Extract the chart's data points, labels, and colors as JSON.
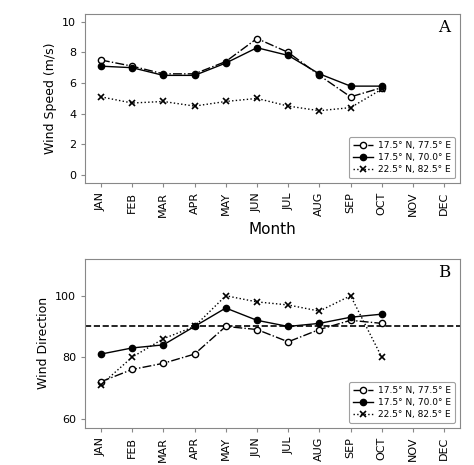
{
  "months": [
    "JAN",
    "FEB",
    "MAR",
    "APR",
    "MAY",
    "JUN",
    "JUL",
    "AUG",
    "SEP",
    "OCT",
    "NOV",
    "DEC"
  ],
  "wind_speed": {
    "s1": [
      7.5,
      7.1,
      6.6,
      6.6,
      7.4,
      8.9,
      8.0,
      6.5,
      5.1,
      5.7,
      null,
      null
    ],
    "s2": [
      7.1,
      7.0,
      6.5,
      6.5,
      7.3,
      8.3,
      7.8,
      6.6,
      5.8,
      5.8,
      null,
      null
    ],
    "s3": [
      5.1,
      4.7,
      4.8,
      4.5,
      4.8,
      5.0,
      4.5,
      4.2,
      4.4,
      5.6,
      null,
      null
    ]
  },
  "wind_dir": {
    "s1": [
      72,
      76,
      78,
      81,
      90,
      89,
      85,
      89,
      92,
      91,
      null,
      null
    ],
    "s2": [
      81,
      83,
      84,
      90,
      96,
      92,
      90,
      91,
      93,
      94,
      null,
      null
    ],
    "s3": [
      71,
      80,
      86,
      90,
      100,
      98,
      97,
      95,
      100,
      80,
      null,
      null
    ]
  },
  "dashed_line_dir": 90,
  "ylim_speed": [
    -0.5,
    10.5
  ],
  "yticks_speed": [
    0,
    2,
    4,
    6,
    8,
    10
  ],
  "ylim_dir": [
    57,
    112
  ],
  "yticks_dir": [
    60,
    80,
    100
  ],
  "legend_labels": [
    "17.5° N, 77.5° E",
    "17.5° N, 70.0° E",
    "22.5° N, 82.5° E"
  ],
  "panel_labels": [
    "A",
    "B"
  ],
  "xlabel": "Month",
  "ylabel_speed": "Wind Speed (m/s)",
  "ylabel_dir": "Wind Direction",
  "spine_color": "#888888",
  "line_color": "black"
}
